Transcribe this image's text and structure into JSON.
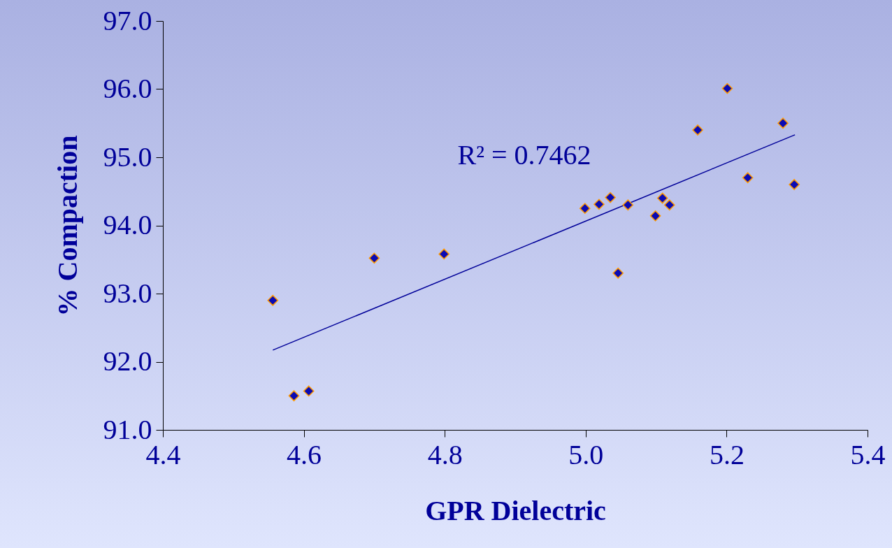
{
  "chart_data": {
    "type": "scatter",
    "xlabel": "GPR Dielectric",
    "ylabel": "% Compaction",
    "xlim": [
      4.4,
      5.4
    ],
    "ylim": [
      91,
      97
    ],
    "xticks": [
      4.4,
      4.6,
      4.8,
      {
        "value": 5,
        "label": "5.0"
      },
      5.2,
      5.4
    ],
    "yticks": [
      {
        "value": 91,
        "label": "91.0"
      },
      {
        "value": 92,
        "label": "92.0"
      },
      {
        "value": 93,
        "label": "93.0"
      },
      {
        "value": 94,
        "label": "94.0"
      },
      {
        "value": 95,
        "label": "95.0"
      },
      {
        "value": 96,
        "label": "96.0"
      },
      {
        "value": 97,
        "label": "97.0"
      }
    ],
    "grid": false,
    "series": [
      {
        "marker": "diamond",
        "color": "#0a0ab4",
        "x": [
          4.556,
          4.586,
          4.607,
          4.7,
          4.799,
          4.999,
          5.019,
          5.035,
          5.046,
          5.06,
          5.099,
          5.109,
          5.119,
          5.159,
          5.201,
          5.23,
          5.28,
          5.296
        ],
        "values": [
          92.9,
          91.5,
          91.57,
          93.52,
          93.58,
          94.25,
          94.31,
          94.41,
          93.3,
          94.3,
          94.14,
          94.4,
          94.3,
          95.4,
          96.01,
          94.7,
          95.5,
          94.6
        ]
      },
      {
        "type": "line",
        "color": "#000099",
        "line_style": "solid",
        "x": [
          4.556,
          5.297
        ],
        "values": [
          92.17,
          95.33
        ]
      }
    ],
    "annotations": [
      "R² = 0.7462"
    ]
  }
}
